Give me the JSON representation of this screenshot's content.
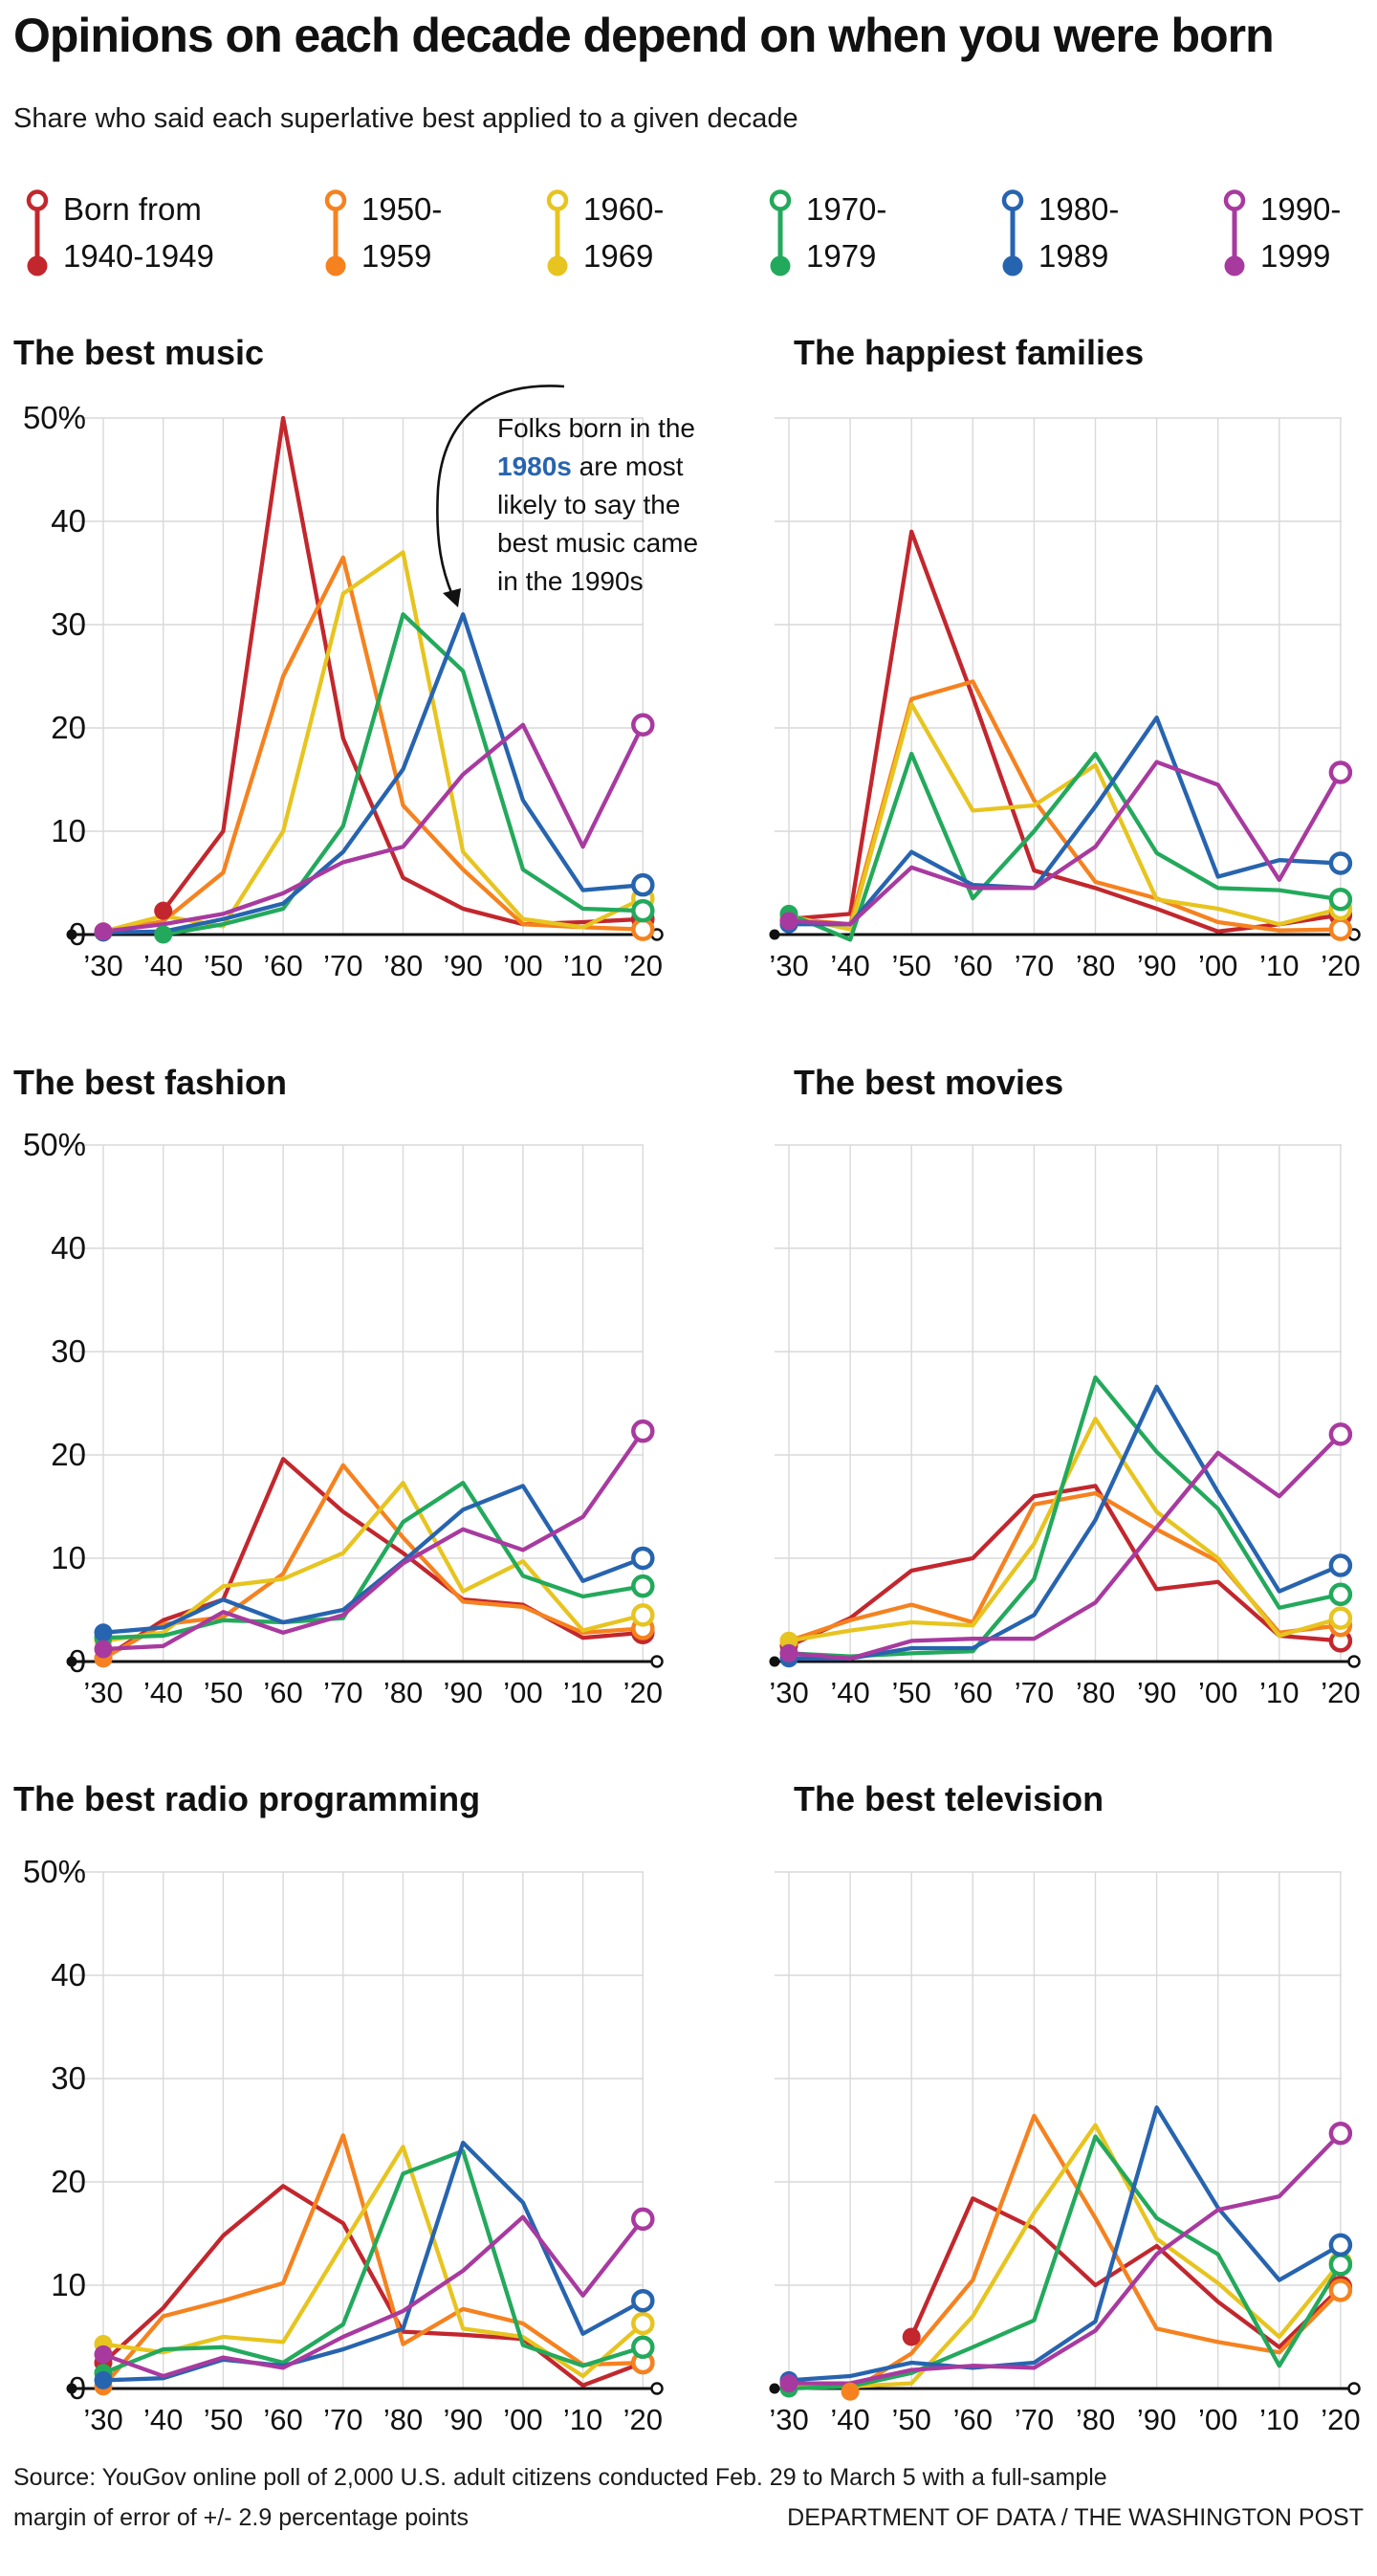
{
  "header": {
    "title": "Opinions on each decade depend on when you were born",
    "subtitle": "Share who said each superlative best applied to a given decade"
  },
  "palette": {
    "red": "#C2272D",
    "orange": "#F5821F",
    "yellow": "#E7C41F",
    "green": "#23A95C",
    "blue": "#2764AF",
    "purple": "#A83A9F",
    "axis": "#111111",
    "grid": "#d9d9d9"
  },
  "legend": {
    "items": [
      {
        "line1": "Born from",
        "line2": "1940-1949",
        "color": "red"
      },
      {
        "line1": "1950-",
        "line2": "1959",
        "color": "orange"
      },
      {
        "line1": "1960-",
        "line2": "1969",
        "color": "yellow"
      },
      {
        "line1": "1970-",
        "line2": "1979",
        "color": "green"
      },
      {
        "line1": "1980-",
        "line2": "1989",
        "color": "blue"
      },
      {
        "line1": "1990-",
        "line2": "1999",
        "color": "purple"
      }
    ]
  },
  "axis": {
    "y_ticks": [
      "50%",
      "40",
      "30",
      "20",
      "10",
      "0"
    ],
    "x_ticks": [
      "’30",
      "’40",
      "’50",
      "’60",
      "’70",
      "’80",
      "’90",
      "’00",
      "’10",
      "’20"
    ],
    "ylim": [
      0,
      50
    ]
  },
  "chart_data": [
    {
      "title": "The best music",
      "type": "line",
      "y_axis_labels": true,
      "ylim": [
        0,
        50
      ],
      "categories": [
        "'30",
        "'40",
        "'50",
        "'60",
        "'70",
        "'80",
        "'90",
        "'00",
        "'10",
        "'20"
      ],
      "series": [
        {
          "name": "Born 1940-1949",
          "color": "red",
          "values": [
            null,
            2.3,
            10,
            50,
            19,
            5.5,
            2.5,
            1,
            1.2,
            1.5
          ]
        },
        {
          "name": "Born 1950-1959",
          "color": "orange",
          "values": [
            0.2,
            1.3,
            6,
            25,
            36.5,
            12.5,
            6.3,
            1,
            0.7,
            0.5
          ]
        },
        {
          "name": "Born 1960-1969",
          "color": "yellow",
          "values": [
            0.3,
            1.8,
            0.8,
            10,
            33,
            37,
            8,
            1.5,
            0.7,
            3.5
          ]
        },
        {
          "name": "Born 1970-1979",
          "color": "green",
          "values": [
            null,
            0,
            1,
            2.5,
            10.5,
            31,
            25.5,
            6.3,
            2.5,
            2.3
          ]
        },
        {
          "name": "Born 1980-1989",
          "color": "blue",
          "values": [
            0.2,
            0.3,
            1.5,
            3,
            8,
            16,
            31,
            13,
            4.3,
            4.8
          ]
        },
        {
          "name": "Born 1990-1999",
          "color": "purple",
          "values": [
            0.3,
            1,
            2,
            4,
            7,
            8.5,
            15.5,
            20.3,
            8.5,
            20.3
          ]
        }
      ]
    },
    {
      "title": "The happiest families",
      "type": "line",
      "y_axis_labels": false,
      "ylim": [
        0,
        50
      ],
      "categories": [
        "'30",
        "'40",
        "'50",
        "'60",
        "'70",
        "'80",
        "'90",
        "'00",
        "'10",
        "'20"
      ],
      "series": [
        {
          "name": "Born 1940-1949",
          "color": "red",
          "values": [
            1.5,
            2,
            39,
            23,
            6.2,
            4.5,
            2.5,
            0.3,
            1,
            1.9
          ]
        },
        {
          "name": "Born 1950-1959",
          "color": "orange",
          "values": [
            1.5,
            1,
            22.8,
            24.5,
            13,
            5.1,
            3.5,
            1.2,
            0.4,
            0.5
          ]
        },
        {
          "name": "Born 1960-1969",
          "color": "yellow",
          "values": [
            1.8,
            0.5,
            22.3,
            12,
            12.5,
            16.4,
            3.4,
            2.5,
            1,
            2.5
          ]
        },
        {
          "name": "Born 1970-1979",
          "color": "green",
          "values": [
            2,
            -0.5,
            17.5,
            3.5,
            10,
            17.5,
            7.9,
            4.5,
            4.3,
            3.4
          ]
        },
        {
          "name": "Born 1980-1989",
          "color": "blue",
          "values": [
            1,
            1,
            8,
            4.8,
            4.5,
            12.4,
            21,
            5.6,
            7.2,
            6.9
          ]
        },
        {
          "name": "Born 1990-1999",
          "color": "purple",
          "values": [
            1.3,
            1,
            6.5,
            4.5,
            4.5,
            8.5,
            16.7,
            14.5,
            5.3,
            15.7
          ]
        }
      ]
    },
    {
      "title": "The best fashion",
      "type": "line",
      "y_axis_labels": true,
      "ylim": [
        0,
        50
      ],
      "categories": [
        "'30",
        "'40",
        "'50",
        "'60",
        "'70",
        "'80",
        "'90",
        "'00",
        "'10",
        "'20"
      ],
      "series": [
        {
          "name": "Born 1940-1949",
          "color": "red",
          "values": [
            0.3,
            4,
            6,
            19.6,
            14.5,
            10.5,
            6,
            5.5,
            2.3,
            2.8
          ]
        },
        {
          "name": "Born 1950-1959",
          "color": "orange",
          "values": [
            0.3,
            3.6,
            4.3,
            8.5,
            19,
            12,
            5.8,
            5.3,
            2.8,
            3.2
          ]
        },
        {
          "name": "Born 1960-1969",
          "color": "yellow",
          "values": [
            2,
            2.8,
            7.3,
            8,
            10.5,
            17.3,
            6.8,
            9.7,
            3,
            4.5
          ]
        },
        {
          "name": "Born 1970-1979",
          "color": "green",
          "values": [
            2.3,
            2.5,
            4,
            3.8,
            4.2,
            13.5,
            17.3,
            8.3,
            6.3,
            7.3
          ]
        },
        {
          "name": "Born 1980-1989",
          "color": "blue",
          "values": [
            2.8,
            3.3,
            6,
            3.8,
            5,
            9.7,
            14.7,
            17,
            7.8,
            10
          ]
        },
        {
          "name": "Born 1990-1999",
          "color": "purple",
          "values": [
            1.2,
            1.5,
            4.8,
            2.8,
            4.5,
            9.5,
            12.8,
            10.8,
            14,
            22.3
          ]
        }
      ]
    },
    {
      "title": "The best movies",
      "type": "line",
      "y_axis_labels": false,
      "ylim": [
        0,
        50
      ],
      "categories": [
        "'30",
        "'40",
        "'50",
        "'60",
        "'70",
        "'80",
        "'90",
        "'00",
        "'10",
        "'20"
      ],
      "series": [
        {
          "name": "Born 1940-1949",
          "color": "red",
          "values": [
            1.5,
            4.2,
            8.8,
            10,
            16,
            17,
            7,
            7.7,
            2.5,
            2
          ]
        },
        {
          "name": "Born 1950-1959",
          "color": "orange",
          "values": [
            2,
            4,
            5.5,
            3.8,
            15.2,
            16.3,
            12.8,
            9.7,
            2.8,
            3.5
          ]
        },
        {
          "name": "Born 1960-1969",
          "color": "yellow",
          "values": [
            2,
            3,
            3.8,
            3.5,
            11.4,
            23.5,
            14.5,
            10,
            2.5,
            4.2
          ]
        },
        {
          "name": "Born 1970-1979",
          "color": "green",
          "values": [
            0.8,
            0.5,
            0.8,
            1,
            8,
            27.5,
            20.3,
            14.8,
            5.2,
            6.5
          ]
        },
        {
          "name": "Born 1980-1989",
          "color": "blue",
          "values": [
            0.3,
            0.3,
            1.3,
            1.3,
            4.5,
            13.7,
            26.6,
            16.4,
            6.8,
            9.3
          ]
        },
        {
          "name": "Born 1990-1999",
          "color": "purple",
          "values": [
            0.8,
            0.3,
            2,
            2.2,
            2.2,
            5.7,
            13,
            20.2,
            16,
            22
          ]
        }
      ]
    },
    {
      "title": "The best radio programming",
      "type": "line",
      "y_axis_labels": true,
      "ylim": [
        0,
        50
      ],
      "categories": [
        "'30",
        "'40",
        "'50",
        "'60",
        "'70",
        "'80",
        "'90",
        "'00",
        "'10",
        "'20"
      ],
      "series": [
        {
          "name": "Born 1940-1949",
          "color": "red",
          "values": [
            2.5,
            7.8,
            14.8,
            19.6,
            16,
            5.5,
            5.2,
            4.8,
            0.3,
            2.5
          ]
        },
        {
          "name": "Born 1950-1959",
          "color": "orange",
          "values": [
            0.2,
            7,
            8.5,
            10.2,
            24.5,
            4.3,
            7.7,
            6.3,
            2.3,
            2.5
          ]
        },
        {
          "name": "Born 1960-1969",
          "color": "yellow",
          "values": [
            4.3,
            3.5,
            5,
            4.5,
            14,
            23.4,
            5.8,
            5,
            1.2,
            6.3
          ]
        },
        {
          "name": "Born 1970-1979",
          "color": "green",
          "values": [
            1.5,
            3.8,
            4,
            2.5,
            6.2,
            20.8,
            23,
            4.2,
            2.2,
            4
          ]
        },
        {
          "name": "Born 1980-1989",
          "color": "blue",
          "values": [
            0.8,
            1,
            2.8,
            2.2,
            3.8,
            5.8,
            23.8,
            18,
            5.3,
            8.5
          ]
        },
        {
          "name": "Born 1990-1999",
          "color": "purple",
          "values": [
            3.3,
            1.2,
            3,
            2,
            5,
            7.5,
            11.4,
            16.6,
            9,
            16.4
          ]
        }
      ]
    },
    {
      "title": "The best television",
      "type": "line",
      "y_axis_labels": false,
      "ylim": [
        0,
        50
      ],
      "categories": [
        "'30",
        "'40",
        "'50",
        "'60",
        "'70",
        "'80",
        "'90",
        "'00",
        "'10",
        "'20"
      ],
      "series": [
        {
          "name": "Born 1940-1949",
          "color": "red",
          "values": [
            null,
            null,
            5,
            18.4,
            15.5,
            10,
            13.8,
            8.4,
            4,
            9.8
          ]
        },
        {
          "name": "Born 1950-1959",
          "color": "orange",
          "values": [
            null,
            -0.3,
            3.4,
            10.5,
            26.4,
            16.5,
            5.8,
            4.5,
            3.5,
            9.5
          ]
        },
        {
          "name": "Born 1960-1969",
          "color": "yellow",
          "values": [
            0.2,
            0.2,
            0.5,
            7,
            17,
            25.5,
            14.5,
            10.2,
            5,
            12.2
          ]
        },
        {
          "name": "Born 1970-1979",
          "color": "green",
          "values": [
            0,
            0.2,
            1.5,
            4,
            6.6,
            24.4,
            16.5,
            13,
            2.2,
            12
          ]
        },
        {
          "name": "Born 1980-1989",
          "color": "blue",
          "values": [
            0.8,
            1.2,
            2.5,
            2,
            2.5,
            6.5,
            27.2,
            17.5,
            10.5,
            13.9
          ]
        },
        {
          "name": "Born 1990-1999",
          "color": "purple",
          "values": [
            0.5,
            0.5,
            1.8,
            2.2,
            2,
            5.6,
            13,
            17.3,
            18.6,
            24.7
          ]
        }
      ]
    }
  ],
  "annotation": {
    "line1": "Folks born in the",
    "line2_highlight": "1980s",
    "line2_rest": " are most",
    "line3": "likely to say the",
    "line4": "best music came",
    "line5": "in the 1990s",
    "highlight_color": "#2764AF"
  },
  "footer": {
    "source_line1": "Source: YouGov online poll of 2,000 U.S. adult citizens conducted Feb. 29 to March 5 with a full-sample",
    "source_line2": "margin of error of +/- 2.9 percentage points",
    "credit": "DEPARTMENT OF DATA / THE WASHINGTON POST"
  }
}
